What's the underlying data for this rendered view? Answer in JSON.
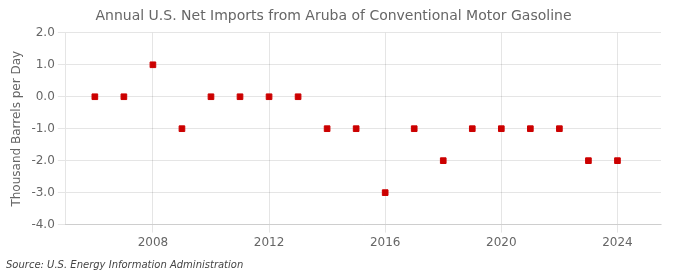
{
  "chart_data": {
    "type": "scatter",
    "title": "Annual U.S. Net Imports from Aruba of Conventional Motor Gasoline",
    "y_label": "Thousand Barrels per Day",
    "annotations": [
      "Source: U.S. Energy Information Administration"
    ],
    "x": [
      2006,
      2007,
      2008,
      2009,
      2010,
      2011,
      2012,
      2013,
      2014,
      2015,
      2016,
      2017,
      2018,
      2019,
      2020,
      2021,
      2022,
      2023,
      2024
    ],
    "values": [
      0.0,
      0.0,
      1.0,
      -1.0,
      0.0,
      0.0,
      0.0,
      0.0,
      -1.0,
      -1.0,
      -3.0,
      -1.0,
      -2.0,
      -1.0,
      -1.0,
      -1.0,
      -1.0,
      -2.0,
      -2.0
    ],
    "color": "#cc0000",
    "marker": "square",
    "xlim": [
      2005.0,
      2025.5
    ],
    "xticks": [
      2008,
      2012,
      2016,
      2020,
      2024
    ],
    "ylim": [
      -4.0,
      2.0
    ],
    "yticks": [
      {
        "value": -4.0,
        "label": "-4.0"
      },
      {
        "value": -3.0,
        "label": "-3.0"
      },
      {
        "value": -2.0,
        "label": "-2.0"
      },
      {
        "value": -1.0,
        "label": "-1.0"
      },
      {
        "value": 0.0,
        "label": "0.0"
      },
      {
        "value": 1.0,
        "label": "1.0"
      },
      {
        "value": 2.0,
        "label": "2.0"
      }
    ],
    "grid": true
  }
}
